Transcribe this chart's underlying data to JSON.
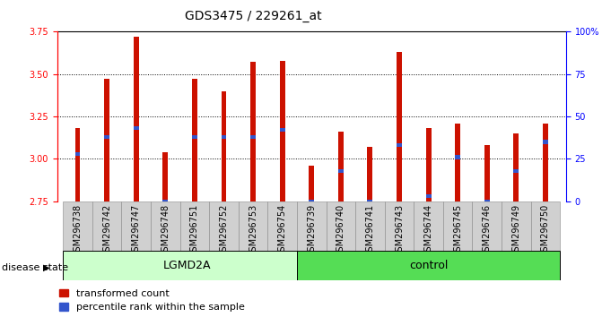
{
  "title": "GDS3475 / 229261_at",
  "samples": [
    "GSM296738",
    "GSM296742",
    "GSM296747",
    "GSM296748",
    "GSM296751",
    "GSM296752",
    "GSM296753",
    "GSM296754",
    "GSM296739",
    "GSM296740",
    "GSM296741",
    "GSM296743",
    "GSM296744",
    "GSM296745",
    "GSM296746",
    "GSM296749",
    "GSM296750"
  ],
  "red_values": [
    3.18,
    3.47,
    3.72,
    3.04,
    3.47,
    3.4,
    3.57,
    3.58,
    2.96,
    3.16,
    3.07,
    3.63,
    3.18,
    3.21,
    3.08,
    3.15,
    3.21
  ],
  "blue_values": [
    3.03,
    3.13,
    3.18,
    2.75,
    3.13,
    3.13,
    3.13,
    3.17,
    2.75,
    2.93,
    2.75,
    3.08,
    2.78,
    3.01,
    2.75,
    2.93,
    3.1
  ],
  "lgmd2a_count": 8,
  "ymin": 2.75,
  "ymax": 3.75,
  "yticks": [
    2.75,
    3.0,
    3.25,
    3.5,
    3.75
  ],
  "y2ticks_pct": [
    0,
    25,
    50,
    75,
    100
  ],
  "bar_color": "#cc1100",
  "blue_color": "#3355cc",
  "bar_width": 0.18,
  "group_lgmd2a_color": "#ccffcc",
  "group_control_color": "#55dd55",
  "disease_state_label": "disease state",
  "legend_red": "transformed count",
  "legend_blue": "percentile rank within the sample",
  "title_fontsize": 10,
  "tick_fontsize": 7,
  "label_fontsize": 8
}
